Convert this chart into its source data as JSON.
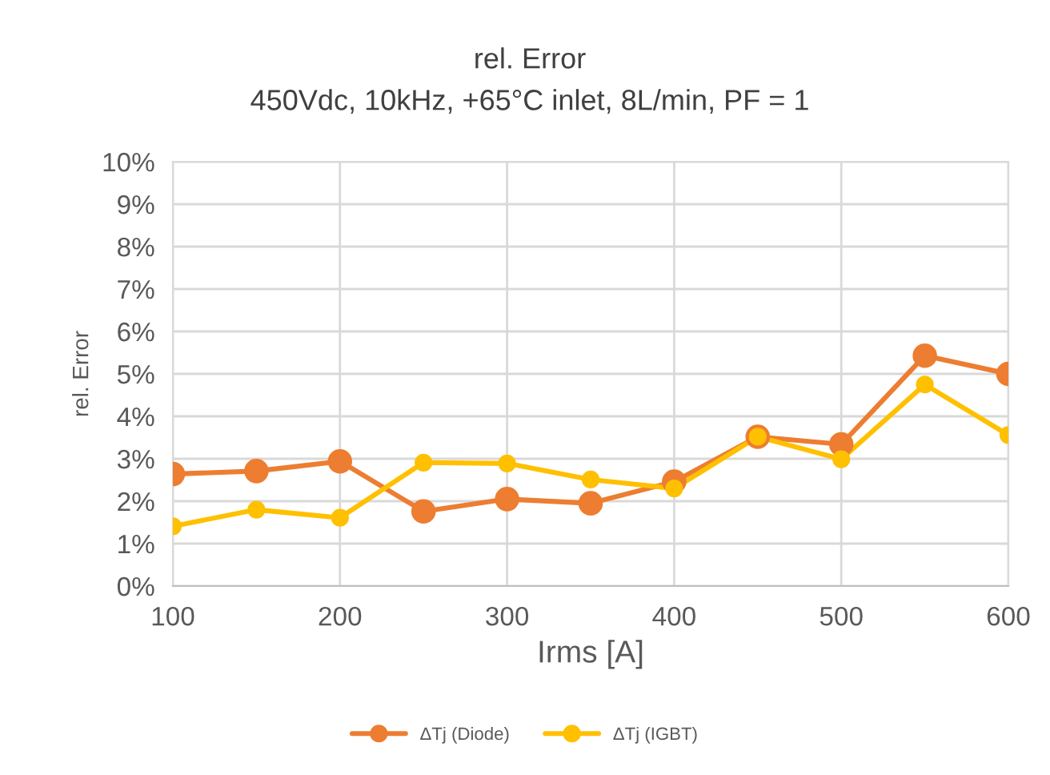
{
  "chart_data": {
    "type": "line",
    "title": "rel. Error",
    "subtitle": "450Vdc, 10kHz, +65°C inlet, 8L/min, PF = 1",
    "xlabel": "Irms [A]",
    "ylabel": "rel. Error",
    "x": [
      100,
      150,
      200,
      250,
      300,
      350,
      400,
      450,
      500,
      550,
      600
    ],
    "series": [
      {
        "name": "ΔTj (Diode)",
        "color": "#ed7d31",
        "values": [
          2.64,
          2.71,
          2.94,
          1.76,
          2.05,
          1.95,
          2.46,
          3.52,
          3.34,
          5.43,
          5.0
        ]
      },
      {
        "name": "ΔTj (IGBT)",
        "color": "#ffc000",
        "values": [
          1.41,
          1.8,
          1.61,
          2.91,
          2.89,
          2.51,
          2.3,
          3.52,
          2.99,
          4.75,
          3.56
        ]
      }
    ],
    "xlim": [
      100,
      600
    ],
    "xticks": [
      100,
      200,
      300,
      400,
      500,
      600
    ],
    "ylim": [
      0,
      10
    ],
    "yticks": [
      {
        "value": 0,
        "label": "0%"
      },
      {
        "value": 1,
        "label": "1%"
      },
      {
        "value": 2,
        "label": "2%"
      },
      {
        "value": 3,
        "label": "3%"
      },
      {
        "value": 4,
        "label": "4%"
      },
      {
        "value": 5,
        "label": "5%"
      },
      {
        "value": 6,
        "label": "6%"
      },
      {
        "value": 7,
        "label": "7%"
      },
      {
        "value": 8,
        "label": "8%"
      },
      {
        "value": 9,
        "label": "9%"
      },
      {
        "value": 10,
        "label": "10%"
      }
    ],
    "grid": true,
    "legend": "bottom",
    "marker": "circle",
    "line_style": "solid"
  }
}
